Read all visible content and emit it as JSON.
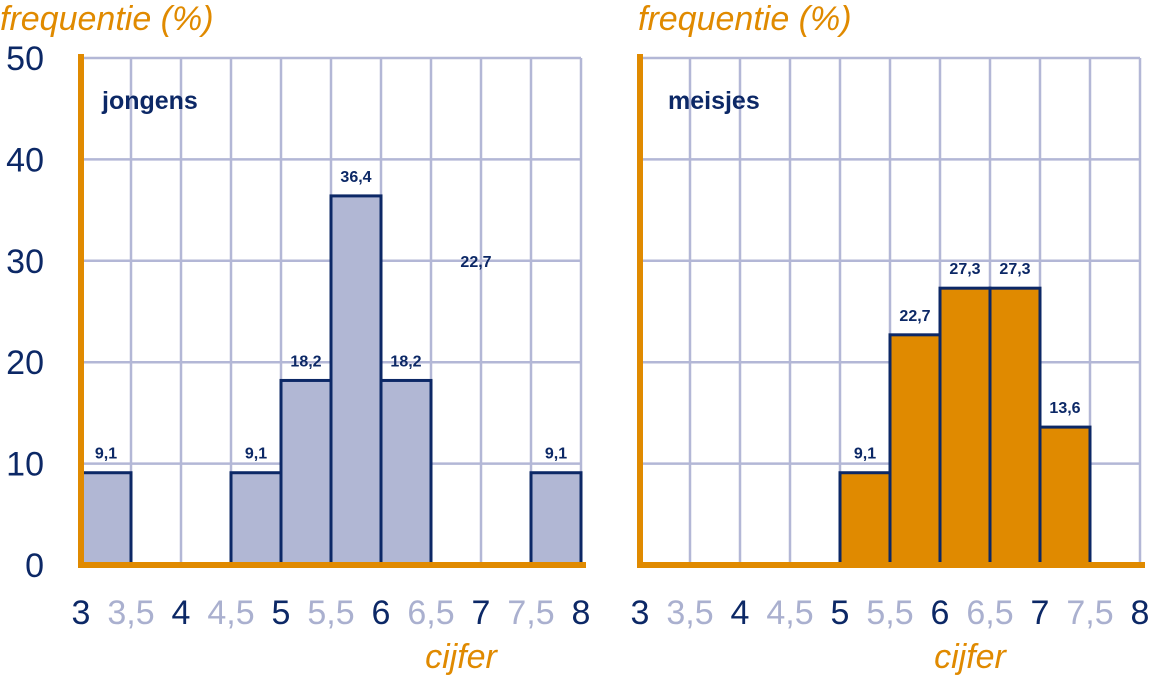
{
  "colors": {
    "axis": "#e08a00",
    "grid": "#b3b7d6",
    "text": "#0c2866",
    "minor_tick": "#aab0cf",
    "bar_boys": "#b1b7d4",
    "bar_girls": "#e08a00",
    "bar_outline": "#0c2866"
  },
  "y_ticks": [
    "0",
    "10",
    "20",
    "30",
    "40",
    "50"
  ],
  "chart_data": [
    {
      "type": "bar",
      "group_label": "jongens",
      "ylabel": "frequentie (%)",
      "xlabel": "cijfer",
      "ylim": [
        0,
        50
      ],
      "xlim": [
        3,
        8
      ],
      "x_ticks": [
        "3",
        "3,5",
        "4",
        "4,5",
        "5",
        "5,5",
        "6",
        "6,5",
        "7",
        "7,5",
        "8"
      ],
      "bar_color": "#b1b7d4",
      "bars": [
        {
          "x0": 3.0,
          "x1": 3.5,
          "value": 9.1,
          "label": "9,1"
        },
        {
          "x0": 4.5,
          "x1": 5.0,
          "value": 9.1,
          "label": "9,1"
        },
        {
          "x0": 5.0,
          "x1": 5.5,
          "value": 18.2,
          "label": "18,2"
        },
        {
          "x0": 5.5,
          "x1": 6.0,
          "value": 36.4,
          "label": "36,4"
        },
        {
          "x0": 6.0,
          "x1": 6.5,
          "value": 18.2,
          "label": "18,2"
        },
        {
          "x0": 7.5,
          "x1": 8.0,
          "value": 9.1,
          "label": "9,1"
        }
      ],
      "annotations": [
        {
          "x": 6.95,
          "y": 29.4,
          "text": "22,7"
        }
      ],
      "grid": true
    },
    {
      "type": "bar",
      "group_label": "meisjes",
      "ylabel": "frequentie (%)",
      "xlabel": "cijfer",
      "ylim": [
        0,
        50
      ],
      "xlim": [
        3,
        8
      ],
      "x_ticks": [
        "3",
        "3,5",
        "4",
        "4,5",
        "5",
        "5,5",
        "6",
        "6,5",
        "7",
        "7,5",
        "8"
      ],
      "bar_color": "#e08a00",
      "bars": [
        {
          "x0": 5.0,
          "x1": 5.5,
          "value": 9.1,
          "label": "9,1"
        },
        {
          "x0": 5.5,
          "x1": 6.0,
          "value": 22.7,
          "label": "22,7"
        },
        {
          "x0": 6.0,
          "x1": 6.5,
          "value": 27.3,
          "label": "27,3"
        },
        {
          "x0": 6.5,
          "x1": 7.0,
          "value": 27.3,
          "label": "27,3"
        },
        {
          "x0": 7.0,
          "x1": 7.5,
          "value": 13.6,
          "label": "13,6"
        }
      ],
      "annotations": [],
      "grid": true
    }
  ]
}
